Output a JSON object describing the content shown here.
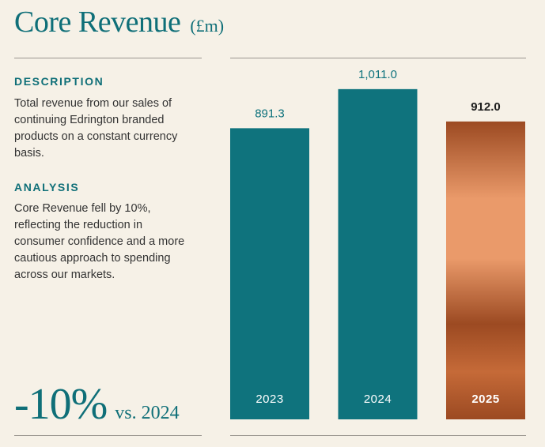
{
  "header": {
    "title": "Core Revenue",
    "unit": "(£m)"
  },
  "description": {
    "heading": "DESCRIPTION",
    "text": "Total revenue from our sales of continuing Edrington branded products on a constant currency basis."
  },
  "analysis": {
    "heading": "ANALYSIS",
    "text": "Core Revenue fell by 10%, reflecting the reduction in consumer confidence and a more cautious approach to spending across our markets."
  },
  "change": {
    "value": "-10%",
    "comparison": "vs. 2024"
  },
  "colors": {
    "teal": "#0f737d",
    "copper_dark": "#9c4a22",
    "copper_light": "#ea9a6a",
    "background": "#f6f1e7"
  },
  "chart_data": {
    "type": "bar",
    "title": "Core Revenue (£m)",
    "categories": [
      "2023",
      "2024",
      "2025"
    ],
    "values": [
      891.3,
      1011.0,
      912.0
    ],
    "value_labels": [
      "891.3",
      "1,011.0",
      "912.0"
    ],
    "highlight": "2025",
    "xlabel": "",
    "ylabel": "",
    "ylim": [
      0,
      1030
    ],
    "grid": false,
    "legend": "none"
  }
}
